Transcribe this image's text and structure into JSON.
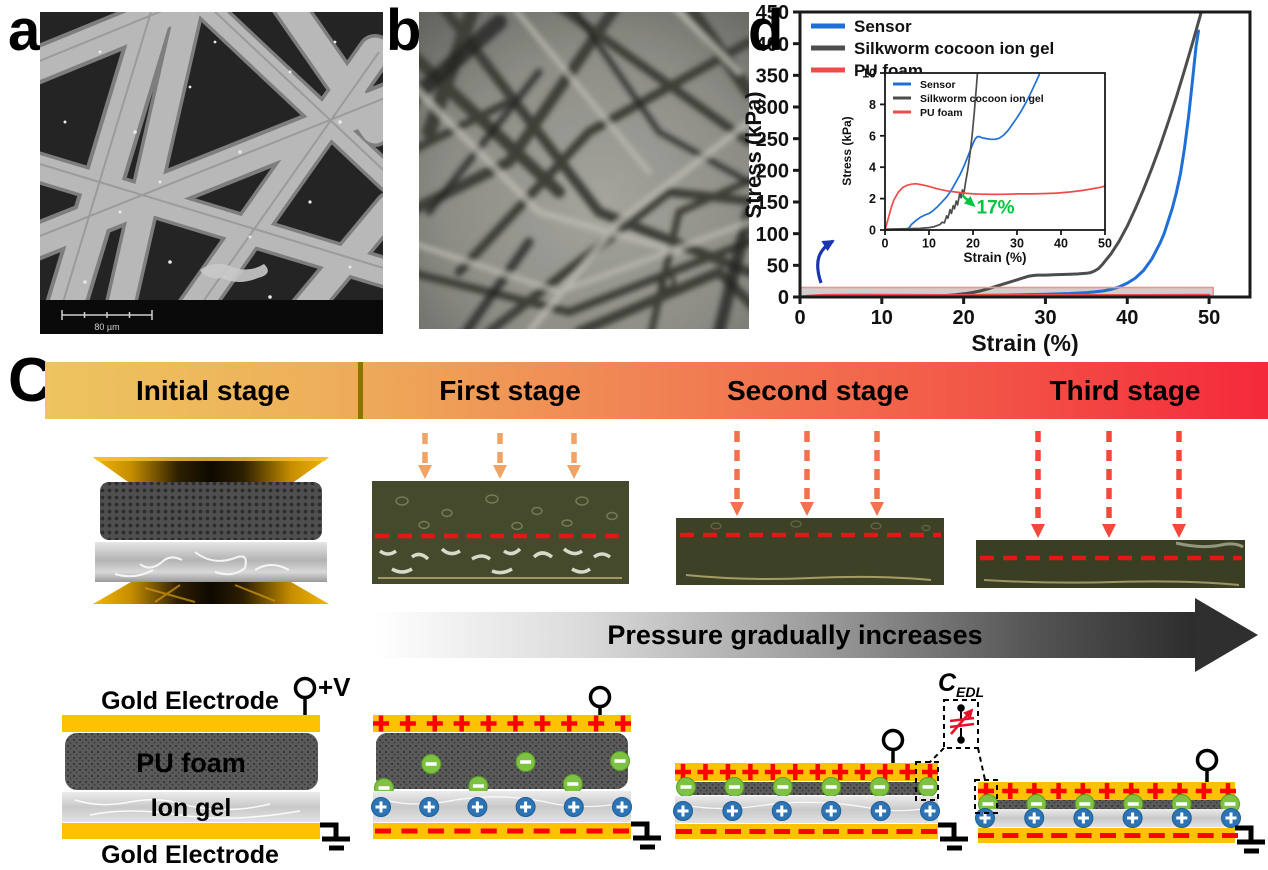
{
  "panels": {
    "a_label": "a",
    "b_label": "b",
    "c_label": "C",
    "d_label": "d"
  },
  "panel_a": {
    "scale_bar": "80 µm"
  },
  "stage_header": {
    "items": [
      "Initial stage",
      "First stage",
      "Second stage",
      "Third stage"
    ]
  },
  "pressure_arrow": {
    "label": "Pressure gradually increases"
  },
  "device_labels": {
    "top_electrode": "Gold Electrode",
    "foam": "PU foam",
    "gel": "Ion gel",
    "bottom_electrode": "Gold Electrode",
    "voltage": "+V",
    "cedl_main": "C",
    "cedl_sub": "EDL"
  },
  "stages": {
    "first": {
      "rows": [
        {
          "kind": "plus",
          "count": 10
        },
        {
          "kind": "anion",
          "count": 6
        },
        {
          "kind": "cation",
          "count": 6
        },
        {
          "kind": "minus",
          "count": 10
        }
      ]
    },
    "second": {
      "rows": [
        {
          "kind": "plus",
          "count": 12
        },
        {
          "kind": "anion",
          "count": 6
        },
        {
          "kind": "cation",
          "count": 6
        },
        {
          "kind": "minus",
          "count": 11
        }
      ]
    },
    "third": {
      "rows": [
        {
          "kind": "plus",
          "count": 11
        },
        {
          "kind": "anion",
          "count": 6
        },
        {
          "kind": "cation",
          "count": 6
        },
        {
          "kind": "minus",
          "count": 11
        }
      ]
    }
  },
  "colors": {
    "gold": "#FFC103",
    "plus_red": "#FF0000",
    "minus_red": "#FF0000",
    "anion_green": "#7DC242",
    "anion_green_edge": "#5A9E22",
    "cation_blue": "#2E74B5",
    "cation_blue_edge": "#1D5E96",
    "sensor_blue": "#1F6FD6",
    "silkworm_gray": "#4D4D4D",
    "pufoam_red": "#F04B4B",
    "annotation_green": "#00C53F",
    "header_gradient": [
      "#EDC45F",
      "#F08A55",
      "#F4293B"
    ],
    "stage1_arrow": "#F0A364",
    "stage2_arrow": "#F2714E",
    "stage3_arrow": "#F4483A",
    "photo_dash_red": "#E51616",
    "zoom_arrow_blue": "#1C35B0"
  },
  "chart_data": {
    "type": "line",
    "title": "",
    "xlabel": "Strain (%)",
    "ylabel": "Stress (kPa)",
    "xlim": [
      0,
      55
    ],
    "ylim": [
      0,
      450
    ],
    "x_ticks": [
      0,
      10,
      20,
      30,
      40,
      50
    ],
    "y_ticks": [
      0,
      50,
      100,
      150,
      200,
      250,
      300,
      350,
      400,
      450
    ],
    "grid": false,
    "legend_position": "top-left",
    "highlight_region": {
      "x": [
        0,
        50.5
      ],
      "y": [
        0,
        15
      ],
      "fill": "rgba(140,140,140,0.42)",
      "stroke": "#F09090"
    },
    "series": [
      {
        "name": "Sensor",
        "color": "#1F6FD6",
        "points": [
          [
            0,
            0
          ],
          [
            5,
            0.3
          ],
          [
            10,
            1
          ],
          [
            15,
            1.8
          ],
          [
            20,
            2.3
          ],
          [
            25,
            3
          ],
          [
            30,
            4.2
          ],
          [
            33,
            5.5
          ],
          [
            35,
            7
          ],
          [
            36,
            8
          ],
          [
            37,
            9.5
          ],
          [
            38,
            12
          ],
          [
            39,
            16
          ],
          [
            40,
            22
          ],
          [
            41,
            30
          ],
          [
            42,
            42
          ],
          [
            43,
            60
          ],
          [
            44,
            85
          ],
          [
            44.5,
            100
          ],
          [
            45,
            120
          ],
          [
            45.5,
            140
          ],
          [
            46,
            165
          ],
          [
            46.5,
            195
          ],
          [
            47,
            235
          ],
          [
            47.5,
            285
          ],
          [
            48,
            345
          ],
          [
            48.4,
            395
          ],
          [
            48.7,
            420
          ]
        ]
      },
      {
        "name": "Silkworm cocoon ion gel",
        "color": "#4D4D4D",
        "points": [
          [
            0,
            0
          ],
          [
            5,
            0.2
          ],
          [
            10,
            0.5
          ],
          [
            14,
            1
          ],
          [
            16,
            1.5
          ],
          [
            18,
            2.5
          ],
          [
            19,
            3.5
          ],
          [
            20,
            5
          ],
          [
            21,
            7
          ],
          [
            22,
            9.5
          ],
          [
            23,
            13
          ],
          [
            24,
            17
          ],
          [
            25,
            21
          ],
          [
            26,
            25
          ],
          [
            27,
            29
          ],
          [
            28,
            33
          ],
          [
            28.5,
            34
          ],
          [
            29,
            34.5
          ],
          [
            30,
            34.5
          ],
          [
            31,
            35
          ],
          [
            32,
            35.5
          ],
          [
            33,
            36
          ],
          [
            34,
            36.5
          ],
          [
            35,
            37.5
          ],
          [
            35.5,
            38.5
          ],
          [
            36,
            41
          ],
          [
            36.5,
            45
          ],
          [
            37,
            52
          ],
          [
            38,
            68
          ],
          [
            39,
            88
          ],
          [
            40,
            112
          ],
          [
            41,
            140
          ],
          [
            42,
            170
          ],
          [
            43,
            203
          ],
          [
            44,
            238
          ],
          [
            45,
            276
          ],
          [
            46,
            316
          ],
          [
            47,
            358
          ],
          [
            48,
            402
          ],
          [
            49,
            448
          ],
          [
            49.3,
            462
          ]
        ]
      },
      {
        "name": "PU foam",
        "color": "#F04B4B",
        "points": [
          [
            0,
            0
          ],
          [
            1,
            1.2
          ],
          [
            2,
            2
          ],
          [
            3,
            2.5
          ],
          [
            5,
            2.9
          ],
          [
            7,
            2.95
          ],
          [
            10,
            2.8
          ],
          [
            15,
            2.5
          ],
          [
            20,
            2.35
          ],
          [
            25,
            2.3
          ],
          [
            30,
            2.3
          ],
          [
            35,
            2.3
          ],
          [
            40,
            2.4
          ],
          [
            45,
            2.55
          ],
          [
            50,
            2.8
          ]
        ]
      }
    ],
    "inset": {
      "type": "line",
      "xlabel": "Strain (%)",
      "ylabel": "Stress (kPa)",
      "xlim": [
        0,
        50
      ],
      "ylim": [
        0,
        10
      ],
      "x_ticks": [
        0,
        10,
        20,
        30,
        40,
        50
      ],
      "y_ticks": [
        0,
        2,
        4,
        6,
        8,
        10
      ],
      "legend_position": "top-left",
      "annotation": {
        "text": "17%",
        "color": "#00C53F",
        "text_at": [
          20.8,
          1.05
        ],
        "arrow_from": [
          17.6,
          2.2
        ],
        "arrow_to": [
          20.2,
          1.55
        ]
      },
      "series": [
        {
          "name": "Sensor",
          "color": "#1F6FD6",
          "points": [
            [
              0,
              0
            ],
            [
              4,
              0.03
            ],
            [
              5,
              0.05
            ],
            [
              5.5,
              0.15
            ],
            [
              6,
              0.35
            ],
            [
              7,
              0.6
            ],
            [
              8,
              0.8
            ],
            [
              9,
              0.95
            ],
            [
              10,
              1.05
            ],
            [
              11,
              1.25
            ],
            [
              12,
              1.5
            ],
            [
              13,
              1.8
            ],
            [
              14,
              2.1
            ],
            [
              15,
              2.5
            ],
            [
              16,
              3.0
            ],
            [
              17,
              3.5
            ],
            [
              18,
              4.1
            ],
            [
              19,
              4.8
            ],
            [
              20,
              5.5
            ],
            [
              20.5,
              5.8
            ],
            [
              21,
              5.95
            ],
            [
              21.5,
              5.95
            ],
            [
              22,
              5.88
            ],
            [
              23,
              5.82
            ],
            [
              24,
              5.78
            ],
            [
              25,
              5.78
            ],
            [
              26,
              5.85
            ],
            [
              27,
              6.05
            ],
            [
              28,
              6.35
            ],
            [
              29,
              6.75
            ],
            [
              30,
              7.15
            ],
            [
              31,
              7.6
            ],
            [
              32,
              8.1
            ],
            [
              33,
              8.65
            ],
            [
              34,
              9.25
            ],
            [
              35,
              9.85
            ],
            [
              35.3,
              10.3
            ]
          ]
        },
        {
          "name": "Silkworm cocoon ion gel",
          "color": "#4D4D4D",
          "points": [
            [
              0,
              0.05
            ],
            [
              5,
              0.08
            ],
            [
              8,
              0.1
            ],
            [
              10,
              0.15
            ],
            [
              11,
              0.2
            ],
            [
              12,
              0.3
            ],
            [
              12.5,
              0.35
            ],
            [
              13,
              0.5
            ],
            [
              13.5,
              0.45
            ],
            [
              14,
              0.9
            ],
            [
              14.3,
              0.75
            ],
            [
              14.8,
              1.3
            ],
            [
              15.1,
              1.05
            ],
            [
              15.5,
              1.55
            ],
            [
              15.8,
              1.35
            ],
            [
              16.2,
              1.85
            ],
            [
              16.5,
              1.6
            ],
            [
              17,
              2.35
            ],
            [
              17.3,
              2.05
            ],
            [
              17.6,
              2.55
            ],
            [
              17.9,
              2.3
            ],
            [
              18.3,
              3.0
            ],
            [
              18.8,
              3.8
            ],
            [
              19.3,
              4.8
            ],
            [
              19.8,
              6.0
            ],
            [
              20.3,
              7.5
            ],
            [
              20.8,
              9.2
            ],
            [
              21.1,
              10.3
            ]
          ]
        },
        {
          "name": "PU foam",
          "color": "#F04B4B",
          "points": [
            [
              0,
              0
            ],
            [
              0.5,
              0.5
            ],
            [
              1,
              1.0
            ],
            [
              1.5,
              1.5
            ],
            [
              2,
              1.9
            ],
            [
              3,
              2.4
            ],
            [
              4,
              2.7
            ],
            [
              5,
              2.85
            ],
            [
              6,
              2.92
            ],
            [
              7,
              2.95
            ],
            [
              8,
              2.9
            ],
            [
              9,
              2.85
            ],
            [
              10,
              2.78
            ],
            [
              12,
              2.62
            ],
            [
              14,
              2.5
            ],
            [
              16,
              2.42
            ],
            [
              18,
              2.35
            ],
            [
              20,
              2.3
            ],
            [
              22,
              2.28
            ],
            [
              25,
              2.27
            ],
            [
              28,
              2.28
            ],
            [
              30,
              2.3
            ],
            [
              33,
              2.3
            ],
            [
              36,
              2.32
            ],
            [
              39,
              2.35
            ],
            [
              42,
              2.42
            ],
            [
              45,
              2.52
            ],
            [
              47,
              2.62
            ],
            [
              49,
              2.72
            ],
            [
              50,
              2.8
            ]
          ]
        }
      ]
    }
  }
}
